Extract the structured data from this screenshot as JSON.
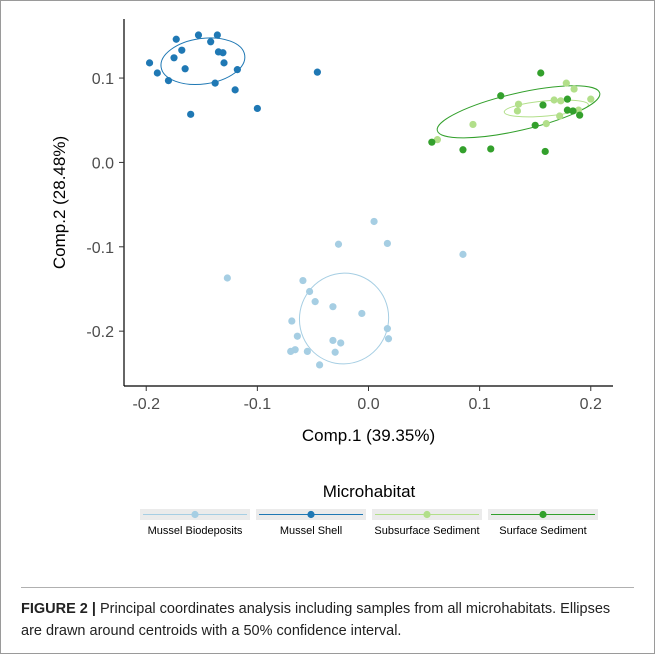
{
  "chart_data": {
    "type": "scatter",
    "xlabel": "Comp.1 (39.35%)",
    "ylabel": "Comp.2 (28.48%)",
    "xlim": [
      -0.22,
      0.22
    ],
    "ylim": [
      -0.265,
      0.17
    ],
    "x_ticks": [
      -0.2,
      -0.1,
      0.0,
      0.1,
      0.2
    ],
    "x_tick_labels": [
      "-0.2",
      "-0.1",
      "0.0",
      "0.1",
      "0.2"
    ],
    "y_ticks": [
      -0.2,
      -0.1,
      0.0,
      0.1
    ],
    "y_tick_labels": [
      "-0.2",
      "-0.1",
      "0.0",
      "0.1"
    ],
    "grid": false,
    "legend": {
      "title": "Microhabitat",
      "position": "bottom"
    },
    "series": [
      {
        "name": "Mussel Biodeposits",
        "color": "#a6cee3",
        "points": [
          [
            0.005,
            -0.07
          ],
          [
            0.017,
            -0.096
          ],
          [
            -0.027,
            -0.097
          ],
          [
            0.085,
            -0.109
          ],
          [
            -0.127,
            -0.137
          ],
          [
            -0.059,
            -0.14
          ],
          [
            -0.053,
            -0.153
          ],
          [
            -0.048,
            -0.165
          ],
          [
            -0.032,
            -0.171
          ],
          [
            -0.006,
            -0.179
          ],
          [
            -0.069,
            -0.188
          ],
          [
            0.017,
            -0.197
          ],
          [
            -0.064,
            -0.206
          ],
          [
            0.018,
            -0.209
          ],
          [
            -0.032,
            -0.211
          ],
          [
            -0.025,
            -0.214
          ],
          [
            -0.07,
            -0.224
          ],
          [
            -0.066,
            -0.222
          ],
          [
            -0.055,
            -0.224
          ],
          [
            -0.03,
            -0.225
          ],
          [
            -0.044,
            -0.24
          ]
        ],
        "ellipse": {
          "cx": -0.022,
          "cy": -0.185,
          "rx": 0.04,
          "ry": 0.054,
          "angle_deg": 21
        }
      },
      {
        "name": "Mussel Shell",
        "color": "#1f78b4",
        "points": [
          [
            -0.153,
            0.151
          ],
          [
            -0.136,
            0.151
          ],
          [
            -0.173,
            0.146
          ],
          [
            -0.142,
            0.143
          ],
          [
            -0.168,
            0.133
          ],
          [
            -0.135,
            0.131
          ],
          [
            -0.131,
            0.13
          ],
          [
            -0.175,
            0.124
          ],
          [
            -0.13,
            0.118
          ],
          [
            -0.197,
            0.118
          ],
          [
            -0.165,
            0.111
          ],
          [
            -0.118,
            0.11
          ],
          [
            -0.19,
            0.106
          ],
          [
            -0.046,
            0.107
          ],
          [
            -0.18,
            0.097
          ],
          [
            -0.138,
            0.094
          ],
          [
            -0.12,
            0.086
          ],
          [
            -0.1,
            0.064
          ],
          [
            -0.16,
            0.057
          ]
        ],
        "ellipse": {
          "cx": -0.149,
          "cy": 0.12,
          "rx": 0.038,
          "ry": 0.027,
          "angle_deg": -8
        }
      },
      {
        "name": "Subsurface Sediment",
        "color": "#b2df8a",
        "points": [
          [
            0.178,
            0.094
          ],
          [
            0.185,
            0.087
          ],
          [
            0.167,
            0.074
          ],
          [
            0.2,
            0.075
          ],
          [
            0.173,
            0.073
          ],
          [
            0.135,
            0.069
          ],
          [
            0.189,
            0.062
          ],
          [
            0.134,
            0.061
          ],
          [
            0.172,
            0.055
          ],
          [
            0.16,
            0.046
          ],
          [
            0.094,
            0.045
          ],
          [
            0.062,
            0.027
          ]
        ],
        "ellipse": {
          "cx": 0.16,
          "cy": 0.064,
          "rx": 0.038,
          "ry": 0.009,
          "angle_deg": -5
        }
      },
      {
        "name": "Surface Sediment",
        "color": "#33a02c",
        "points": [
          [
            0.155,
            0.106
          ],
          [
            0.119,
            0.079
          ],
          [
            0.179,
            0.075
          ],
          [
            0.157,
            0.068
          ],
          [
            0.179,
            0.062
          ],
          [
            0.184,
            0.061
          ],
          [
            0.19,
            0.056
          ],
          [
            0.15,
            0.044
          ],
          [
            0.057,
            0.024
          ],
          [
            0.11,
            0.016
          ],
          [
            0.085,
            0.015
          ],
          [
            0.159,
            0.013
          ]
        ],
        "ellipse": {
          "cx": 0.135,
          "cy": 0.06,
          "rx": 0.075,
          "ry": 0.022,
          "angle_deg": -13
        }
      }
    ]
  },
  "caption": {
    "label": "FIGURE 2 |",
    "text": " Principal coordinates analysis including samples from all microhabitats. Ellipses are drawn around centroids with a 50% confidence interval."
  }
}
